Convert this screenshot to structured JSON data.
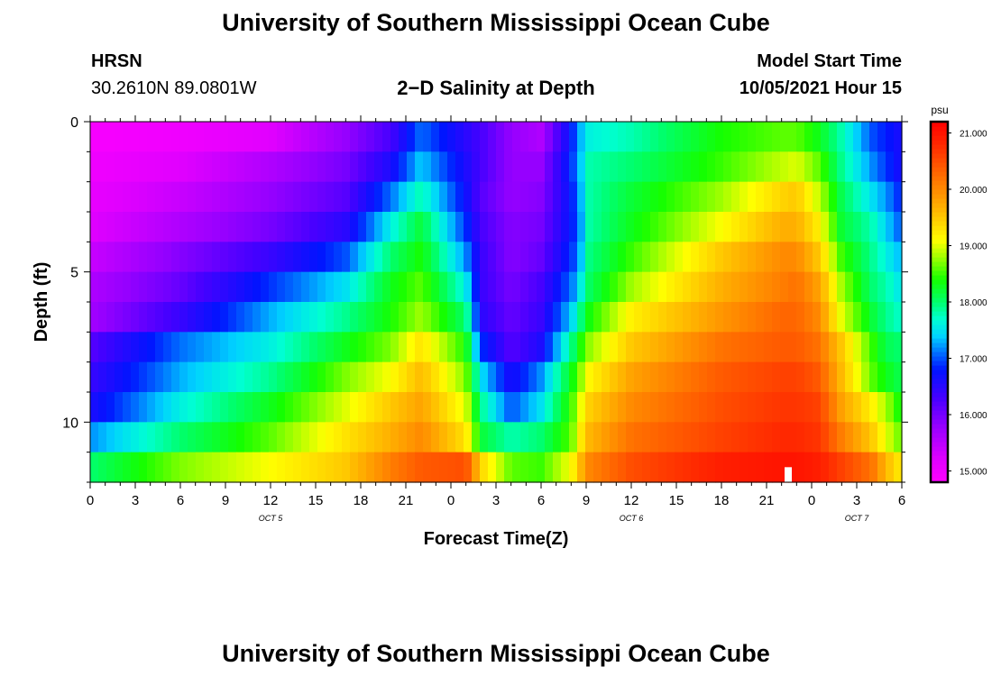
{
  "page": {
    "title_top": "University of Southern Mississippi Ocean Cube",
    "title_bottom": "University of Southern Mississippi Ocean Cube",
    "station_name": "HRSN",
    "station_coords": "30.2610N  89.0801W",
    "start_label": "Model Start Time",
    "start_value": "10/05/2021 Hour 15"
  },
  "chart_data": {
    "type": "heatmap",
    "title": "2−D Salinity at Depth",
    "xlabel": "Forecast Time(Z)",
    "ylabel": "Depth (ft)",
    "x_range_hours": [
      0,
      54
    ],
    "y_range_ft": [
      0,
      12
    ],
    "x_tick_labels": [
      "0",
      "3",
      "6",
      "9",
      "12",
      "15",
      "18",
      "21",
      "0",
      "3",
      "6",
      "9",
      "12",
      "15",
      "18",
      "21",
      "0",
      "3",
      "6"
    ],
    "y_tick_labels": [
      "0",
      "5",
      "10"
    ],
    "y_tick_values": [
      0,
      5,
      10
    ],
    "date_labels": [
      {
        "text": "OCT 5",
        "hour": 12
      },
      {
        "text": "OCT 6",
        "hour": 36
      },
      {
        "text": "OCT 7",
        "hour": 51
      }
    ],
    "colorbar": {
      "unit": "psu",
      "min": 14.8,
      "max": 21.2,
      "tick_labels": [
        "15.000",
        "16.000",
        "17.000",
        "18.000",
        "19.000",
        "20.000",
        "21.000"
      ],
      "tick_values": [
        15,
        16,
        17,
        18,
        19,
        20,
        21
      ]
    },
    "depth_levels_ft": [
      0.5,
      1.5,
      2.5,
      3.5,
      4.5,
      5.5,
      6.5,
      7.5,
      8.5,
      9.5,
      10.5,
      11.5
    ],
    "time_keypoints_h": [
      0,
      6,
      12,
      17,
      20,
      22,
      25,
      26,
      28,
      30,
      32,
      32.5,
      33,
      36,
      42,
      46,
      47,
      48.5,
      50,
      52,
      53,
      54
    ],
    "salinity_psu": [
      [
        14.9,
        15.0,
        15.2,
        15.8,
        16.3,
        17.1,
        16.5,
        16.3,
        15.8,
        15.6,
        16.8,
        17.2,
        17.6,
        17.8,
        18.4,
        18.6,
        18.6,
        18.3,
        17.8,
        17.0,
        16.8,
        16.6
      ],
      [
        15.0,
        15.2,
        15.6,
        16.0,
        16.6,
        17.4,
        16.6,
        16.3,
        15.8,
        15.8,
        16.9,
        17.2,
        17.8,
        18.0,
        18.5,
        18.9,
        19.0,
        18.6,
        17.9,
        17.2,
        16.9,
        16.6
      ],
      [
        15.1,
        15.4,
        15.8,
        16.2,
        17.1,
        17.8,
        16.7,
        16.2,
        15.8,
        15.9,
        16.8,
        17.1,
        17.8,
        18.2,
        18.8,
        19.4,
        19.5,
        18.9,
        18.1,
        17.5,
        17.2,
        16.8
      ],
      [
        15.2,
        15.6,
        16.0,
        16.5,
        17.6,
        18.2,
        16.9,
        16.3,
        15.9,
        16.0,
        16.8,
        17.0,
        17.8,
        18.3,
        19.1,
        19.7,
        19.7,
        19.2,
        18.2,
        17.8,
        17.4,
        17.0
      ],
      [
        15.4,
        15.9,
        16.4,
        17.0,
        18.0,
        18.4,
        17.2,
        16.4,
        15.9,
        16.1,
        16.9,
        17.1,
        17.9,
        18.5,
        19.5,
        20.0,
        20.0,
        19.5,
        18.5,
        17.9,
        17.6,
        17.3
      ],
      [
        15.6,
        16.1,
        16.9,
        17.5,
        18.3,
        18.6,
        17.6,
        16.4,
        16.0,
        16.3,
        17.1,
        17.4,
        18.0,
        18.8,
        19.7,
        20.1,
        20.2,
        19.8,
        18.8,
        18.0,
        17.8,
        17.5
      ],
      [
        15.7,
        16.4,
        17.3,
        17.9,
        18.4,
        18.8,
        18.0,
        16.5,
        16.1,
        16.4,
        17.4,
        17.8,
        18.3,
        19.2,
        19.9,
        20.3,
        20.3,
        20.0,
        19.0,
        18.2,
        17.9,
        17.7
      ],
      [
        16.2,
        17.1,
        17.6,
        18.3,
        18.7,
        19.3,
        18.4,
        16.9,
        16.2,
        16.6,
        17.9,
        18.3,
        18.7,
        19.5,
        20.2,
        20.4,
        20.4,
        20.2,
        19.5,
        18.5,
        18.1,
        18.0
      ],
      [
        16.4,
        17.3,
        17.9,
        18.7,
        19.1,
        19.6,
        18.7,
        17.5,
        16.6,
        17.2,
        18.3,
        18.6,
        19.1,
        19.8,
        20.4,
        20.6,
        20.6,
        20.4,
        19.6,
        18.6,
        18.3,
        18.1
      ],
      [
        16.6,
        17.6,
        18.3,
        19.0,
        19.5,
        19.8,
        19.0,
        17.9,
        17.0,
        17.5,
        18.5,
        18.9,
        19.4,
        20.0,
        20.5,
        20.7,
        20.7,
        20.6,
        19.8,
        19.2,
        18.8,
        18.3
      ],
      [
        17.2,
        18.0,
        18.6,
        19.3,
        19.7,
        20.0,
        19.3,
        18.2,
        17.8,
        18.0,
        18.6,
        19.1,
        19.6,
        20.2,
        20.6,
        20.8,
        20.8,
        20.7,
        20.1,
        19.5,
        19.0,
        18.6
      ],
      [
        18.0,
        18.7,
        19.1,
        19.5,
        20.1,
        20.4,
        20.5,
        19.4,
        18.6,
        18.5,
        19.1,
        19.5,
        20.0,
        20.5,
        20.9,
        21.0,
        21.0,
        20.9,
        20.6,
        20.2,
        19.6,
        19.2
      ]
    ]
  }
}
